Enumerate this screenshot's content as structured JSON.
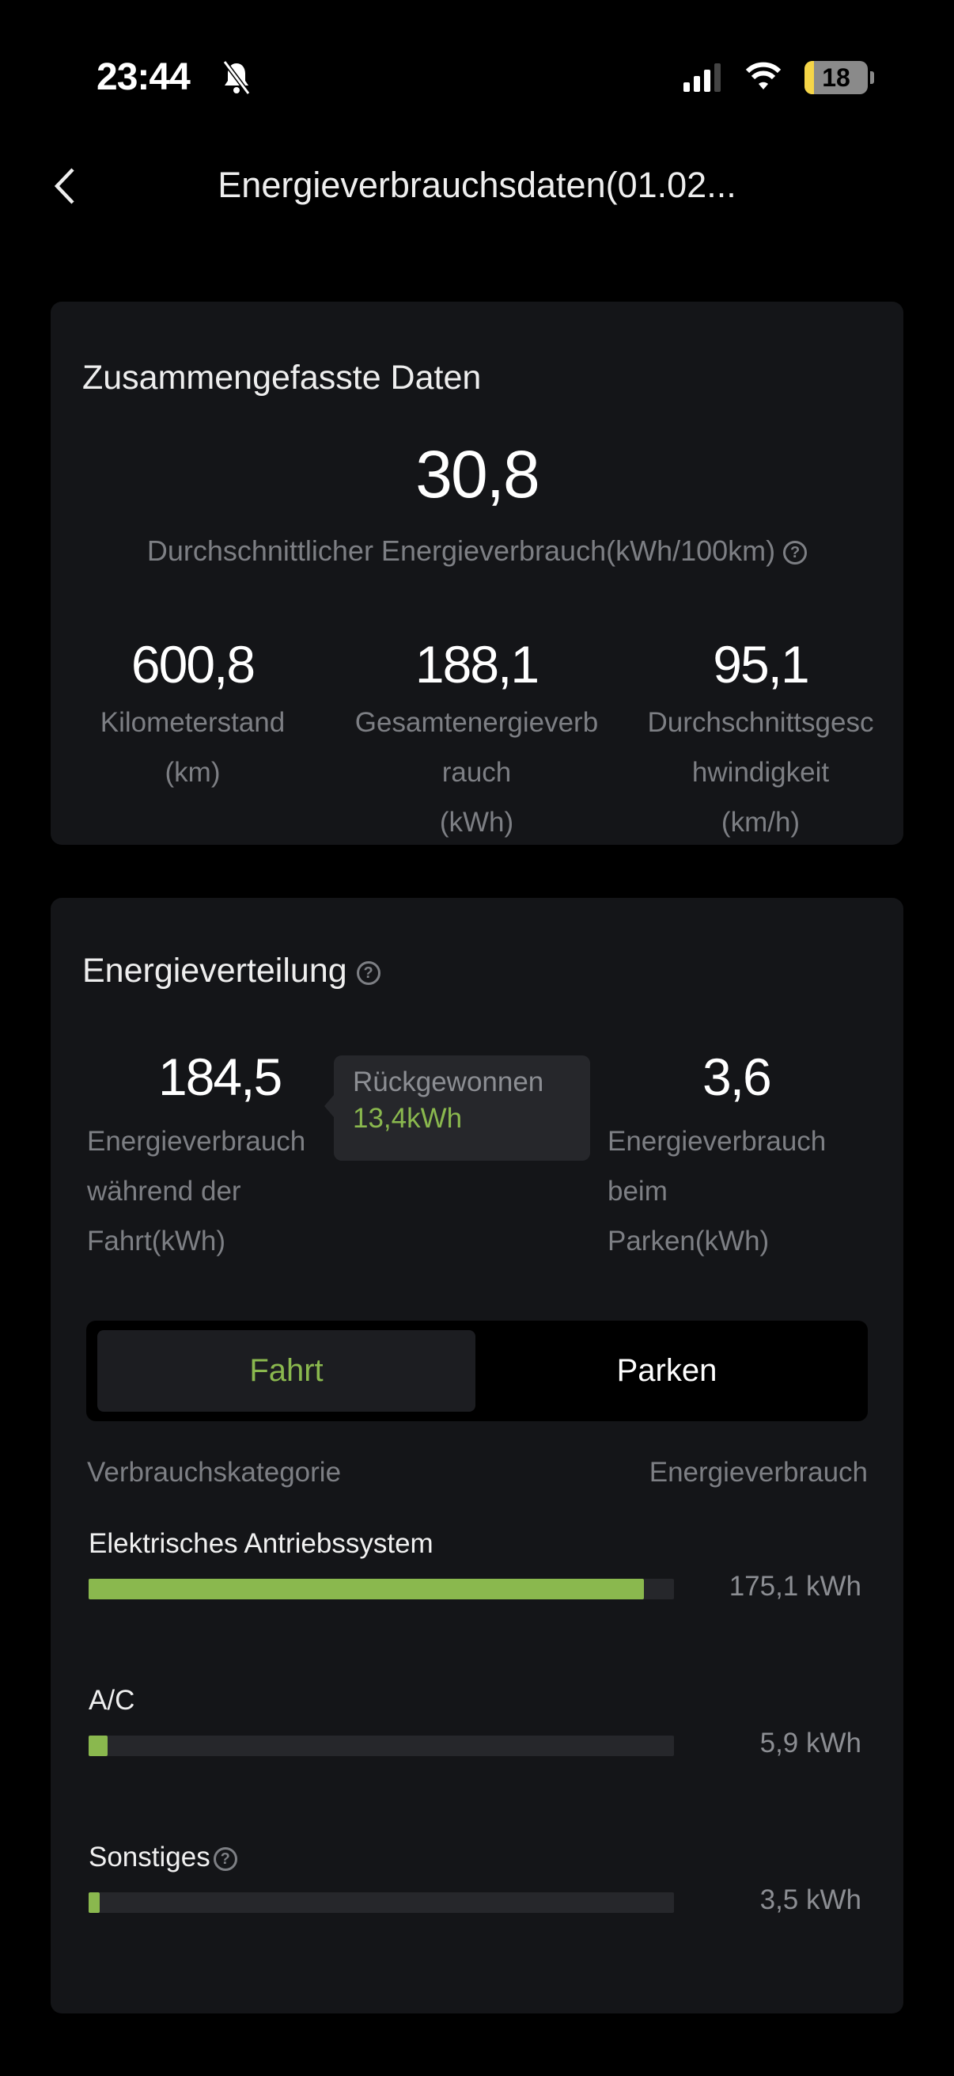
{
  "status_bar": {
    "time": "23:44",
    "battery": "18",
    "icons": [
      "bell-slash-icon",
      "cellular-signal-icon",
      "wifi-icon",
      "battery-icon"
    ],
    "battery_color": "#f5d547"
  },
  "header": {
    "title": "Energieverbrauchsdaten(01.02...",
    "back_icon": "chevron-left-icon"
  },
  "summary": {
    "title": "Zusammengefasste Daten",
    "avg_value": "30,8",
    "avg_label": "Durchschnittlicher Energieverbrauch(kWh/100km)",
    "stats": [
      {
        "value": "600,8",
        "label_lines": [
          "Kilometerstand",
          "(km)"
        ]
      },
      {
        "value": "188,1",
        "label_lines": [
          "Gesamtenergieverb",
          "rauch",
          "(kWh)"
        ]
      },
      {
        "value": "95,1",
        "label_lines": [
          "Durchschnittsgesc",
          "hwindigkeit",
          "(km/h)"
        ]
      }
    ]
  },
  "distribution": {
    "title": "Energieverteilung",
    "driving": {
      "value": "184,5",
      "label_lines": [
        "Energieverbrauch",
        "während der",
        "Fahrt(kWh)"
      ]
    },
    "tooltip": {
      "title": "Rückgewonnen",
      "value": "13,4kWh"
    },
    "parking": {
      "value": "3,6",
      "label_lines": [
        "Energieverbrauch",
        "beim",
        "Parken(kWh)"
      ]
    },
    "tabs": [
      {
        "label": "Fahrt",
        "active": true
      },
      {
        "label": "Parken",
        "active": false
      }
    ],
    "col_category": "Verbrauchskategorie",
    "col_consumption": "Energieverbrauch",
    "items": [
      {
        "label": "Elektrisches Antriebssystem",
        "value": "175,1 kWh",
        "fraction": 0.949,
        "help": false
      },
      {
        "label": "A/C",
        "value": "5,9 kWh",
        "fraction": 0.032,
        "help": false
      },
      {
        "label": "Sonstiges",
        "value": "3,5 kWh",
        "fraction": 0.019,
        "help": true
      }
    ],
    "accent": "#8ab84e"
  }
}
